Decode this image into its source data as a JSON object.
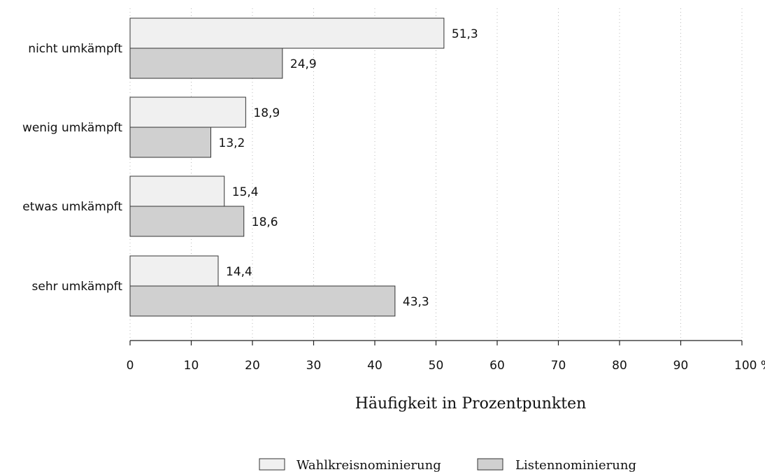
{
  "chart_data": {
    "type": "bar",
    "orientation": "horizontal",
    "categories": [
      "nicht umkämpft",
      "wenig umkämpft",
      "etwas umkämpft",
      "sehr umkämpft"
    ],
    "series": [
      {
        "name": "Wahlkreisnominierung",
        "values": [
          51.3,
          18.9,
          15.4,
          14.4
        ],
        "value_labels": [
          "51,3",
          "18,9",
          "15,4",
          "14,4"
        ],
        "color": "#f0f0f0"
      },
      {
        "name": "Listennominierung",
        "values": [
          24.9,
          13.2,
          18.6,
          43.3
        ],
        "value_labels": [
          "24,9",
          "13,2",
          "18,6",
          "43,3"
        ],
        "color": "#d0d0d0"
      }
    ],
    "xlabel": "Häufigkeit in Prozentpunkten",
    "xlim": [
      0,
      100
    ],
    "xticks": [
      0,
      10,
      20,
      30,
      40,
      50,
      60,
      70,
      80,
      90,
      100
    ],
    "xtick_labels": [
      "0",
      "10",
      "20",
      "30",
      "40",
      "50",
      "60",
      "70",
      "80",
      "90",
      "100 %"
    ],
    "grid": "vertical dotted",
    "legend_position": "bottom"
  }
}
